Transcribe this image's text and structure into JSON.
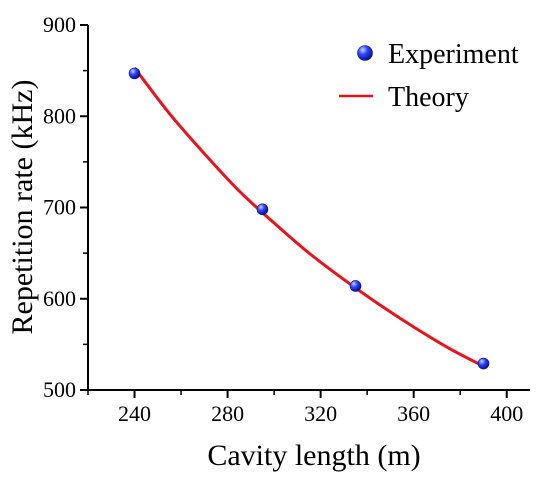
{
  "chart_data": {
    "type": "scatter",
    "title": "",
    "xlabel": "Cavity length (m)",
    "ylabel": "Repetition rate (kHz)",
    "xlim": [
      220,
      410
    ],
    "ylim": [
      500,
      900
    ],
    "xticks": [
      240,
      280,
      320,
      360,
      400
    ],
    "yticks": [
      500,
      600,
      700,
      800,
      900
    ],
    "grid": false,
    "legend_position": "top-right",
    "series": [
      {
        "name": "Experiment",
        "kind": "scatter",
        "color": "#1f2bd6",
        "x": [
          240,
          295,
          335,
          390
        ],
        "y": [
          847,
          698,
          614,
          529
        ]
      },
      {
        "name": "Theory",
        "kind": "line",
        "color": "#e8141b",
        "x": [
          240,
          255,
          270,
          285,
          300,
          315,
          330,
          345,
          360,
          375,
          390
        ],
        "y": [
          853,
          803,
          759,
          718,
          683,
          650,
          621,
          594,
          569,
          546,
          526
        ]
      }
    ]
  }
}
